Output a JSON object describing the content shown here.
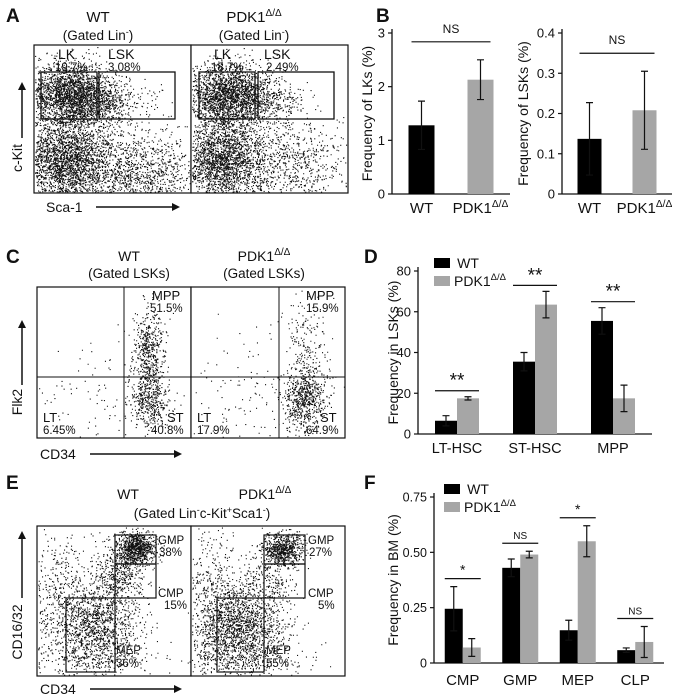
{
  "panels": {
    "A": {
      "label": "A",
      "wt_title": "WT",
      "wt_sub_pre": "(Gated Lin",
      "wt_sub_sup": "-",
      "wt_sub_post": ")",
      "ko_title_main": "PDK1",
      "ko_title_sup": "Δ/Δ",
      "ko_sub_pre": "(Gated Lin",
      "ko_sub_sup": "-",
      "ko_sub_post": ")",
      "y_axis": "c-Kit",
      "x_axis": "Sca-1",
      "wt_gates": [
        {
          "name": "LK",
          "pct": "19.7%"
        },
        {
          "name": "LSK",
          "pct": "3.08%"
        }
      ],
      "ko_gates": [
        {
          "name": "LK",
          "pct": "18.7%"
        },
        {
          "name": "LSK",
          "pct": "2.49%"
        }
      ]
    },
    "C": {
      "label": "C",
      "wt_title": "WT",
      "wt_sub": "(Gated LSKs)",
      "ko_title_main": "PDK1",
      "ko_title_sup": "Δ/Δ",
      "ko_sub": "(Gated LSKs)",
      "y_axis": "Flk2",
      "x_axis": "CD34",
      "wt_quadrants": {
        "mpp": "MPP",
        "mpp_pct": "51.5%",
        "lt": "LT",
        "lt_pct": "6.45%",
        "st": "ST",
        "st_pct": "40.8%"
      },
      "ko_quadrants": {
        "mpp": "MPP",
        "mpp_pct": "15.9%",
        "lt": "LT",
        "lt_pct": "17.9%",
        "st": "ST",
        "st_pct": "64.9%"
      }
    },
    "E": {
      "label": "E",
      "wt_title": "WT",
      "ko_title_main": "PDK1",
      "ko_title_sup": "Δ/Δ",
      "gating_parts": [
        "(Gated Lin",
        "-",
        "c-Kit",
        "+",
        "Sca1",
        "-",
        ")"
      ],
      "y_axis": "CD16/32",
      "x_axis": "CD34",
      "wt_gates": [
        {
          "name": "GMP",
          "pct": "38%"
        },
        {
          "name": "CMP",
          "pct": "15%"
        },
        {
          "name": "MEP",
          "pct": "36%"
        }
      ],
      "ko_gates": [
        {
          "name": "GMP",
          "pct": "27%"
        },
        {
          "name": "CMP",
          "pct": "5%"
        },
        {
          "name": "MEP",
          "pct": "55%"
        }
      ]
    }
  },
  "colors": {
    "wt": "#000000",
    "ko": "#a6a6a6"
  },
  "chart_data": [
    {
      "panel": "B",
      "type": "bar",
      "categories": [
        "WT",
        "PDK1Δ/Δ"
      ],
      "values": [
        1.28,
        2.13
      ],
      "errors": [
        0.45,
        0.37
      ],
      "ylabel": "Frequency of LKs (%)",
      "ylim": [
        0,
        3
      ],
      "yticks": [
        "0",
        "1",
        "2",
        "3"
      ],
      "significance": [
        {
          "from": 0,
          "to": 1,
          "text": "NS"
        }
      ]
    },
    {
      "panel": "B",
      "type": "bar",
      "categories": [
        "WT",
        "PDK1Δ/Δ"
      ],
      "values": [
        0.137,
        0.208
      ],
      "errors": [
        0.09,
        0.097
      ],
      "ylabel": "Frequency of LSKs (%)",
      "ylim": [
        0,
        0.4
      ],
      "yticks": [
        "0",
        "0.1",
        "0.2",
        "0.3",
        "0.4"
      ],
      "significance": [
        {
          "from": 0,
          "to": 1,
          "text": "NS"
        }
      ]
    },
    {
      "panel": "D",
      "type": "bar",
      "categories": [
        "LT-HSC",
        "ST-HSC",
        "MPP"
      ],
      "series": [
        {
          "name": "WT",
          "values": [
            6.5,
            35.5,
            55.5
          ],
          "errors": [
            2.5,
            4.5,
            6.5
          ]
        },
        {
          "name": "PDK1Δ/Δ",
          "values": [
            17.5,
            63.5,
            17.5
          ],
          "errors": [
            0.8,
            6.5,
            6.5
          ]
        }
      ],
      "ylabel": "Frequency in LSKs (%)",
      "ylim": [
        0,
        80
      ],
      "yticks": [
        "0",
        "20",
        "40",
        "60",
        "80"
      ],
      "significance": [
        "**",
        "**",
        "**"
      ],
      "legend": "top-left"
    },
    {
      "panel": "F",
      "type": "bar",
      "categories": [
        "CMP",
        "GMP",
        "MEP",
        "CLP"
      ],
      "series": [
        {
          "name": "WT",
          "values": [
            0.245,
            0.43,
            0.148,
            0.058
          ],
          "errors": [
            0.1,
            0.04,
            0.045,
            0.01
          ]
        },
        {
          "name": "PDK1Δ/Δ",
          "values": [
            0.07,
            0.49,
            0.55,
            0.095
          ],
          "errors": [
            0.04,
            0.015,
            0.07,
            0.07
          ]
        }
      ],
      "ylabel": "Frequency in BM (%)",
      "ylim": [
        0,
        0.75
      ],
      "yticks": [
        "0",
        "0.25",
        "0.50",
        "0.75"
      ],
      "significance": [
        "*",
        "NS",
        "*",
        "NS"
      ],
      "legend": "top-left"
    }
  ]
}
